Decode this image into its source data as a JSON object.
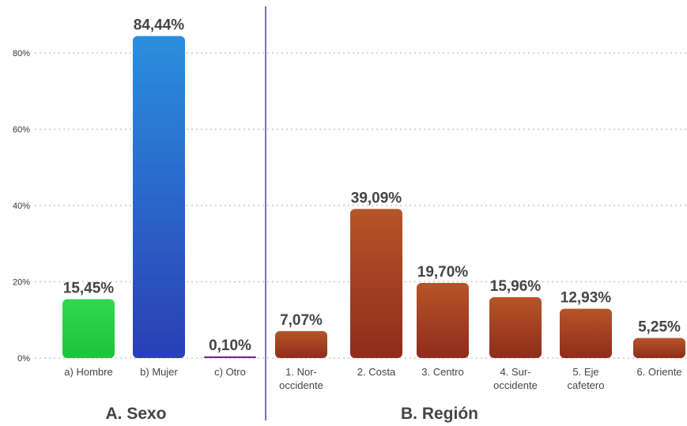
{
  "chart_data": {
    "type": "bar",
    "ylim": [
      0,
      100
    ],
    "y_ticks": [
      {
        "value": 0,
        "label": "0%"
      },
      {
        "value": 20,
        "label": "20%"
      },
      {
        "value": 40,
        "label": "40%"
      },
      {
        "value": 60,
        "label": "60%"
      },
      {
        "value": 80,
        "label": "80%"
      }
    ],
    "grid": true,
    "panels": [
      {
        "title": "A. Sexo",
        "categories": [
          {
            "label": [
              "a) Hombre"
            ],
            "value": 15.45,
            "value_label": "15,45%",
            "color_top": "#2fd94f",
            "color_bottom": "#1fc23a"
          },
          {
            "label": [
              "b) Mujer"
            ],
            "value": 84.44,
            "value_label": "84,44%",
            "color_top": "#2a8fdd",
            "color_bottom": "#2a3fb5"
          },
          {
            "label": [
              "c) Otro"
            ],
            "value": 0.1,
            "value_label": "0,10%",
            "color_top": "#7a2a9a",
            "color_bottom": "#5a1f80"
          }
        ]
      },
      {
        "title": "B. Región",
        "categories": [
          {
            "label": [
              "1. Nor-",
              "occidente"
            ],
            "value": 7.07,
            "value_label": "7,07%",
            "color_top": "#b65528",
            "color_bottom": "#8f2c1c"
          },
          {
            "label": [
              "2. Costa"
            ],
            "value": 39.09,
            "value_label": "39,09%",
            "color_top": "#b65528",
            "color_bottom": "#8f2c1c"
          },
          {
            "label": [
              "3. Centro"
            ],
            "value": 19.7,
            "value_label": "19,70%",
            "color_top": "#b65528",
            "color_bottom": "#8f2c1c"
          },
          {
            "label": [
              "4. Sur-",
              "occidente"
            ],
            "value": 15.96,
            "value_label": "15,96%",
            "color_top": "#b65528",
            "color_bottom": "#8f2c1c"
          },
          {
            "label": [
              "5. Eje",
              "cafetero"
            ],
            "value": 12.93,
            "value_label": "12,93%",
            "color_top": "#b65528",
            "color_bottom": "#8f2c1c"
          },
          {
            "label": [
              "6. Oriente"
            ],
            "value": 5.25,
            "value_label": "5,25%",
            "color_top": "#b65528",
            "color_bottom": "#8f2c1c"
          }
        ]
      }
    ]
  },
  "colors": {
    "separator": "#6b6fdc",
    "grid": "#c8c8c8",
    "axis_text": "#333333",
    "label_text": "#444444"
  }
}
